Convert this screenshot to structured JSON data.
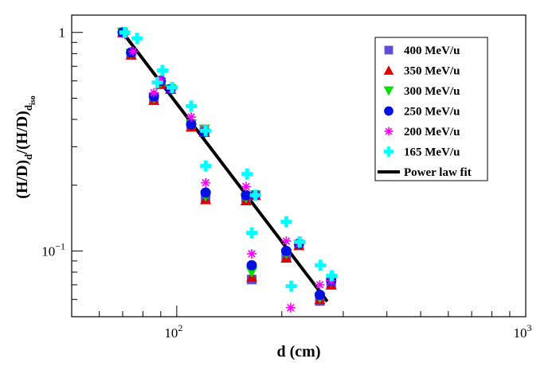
{
  "chart_data": {
    "type": "scatter",
    "title": "",
    "xlabel": "d (cm)",
    "ylabel": {
      "main": "(H/D)",
      "sub1": "d",
      "mid": "/(H/D)",
      "sub2": "d",
      "subsub": "iso"
    },
    "x_scale": "log",
    "y_scale": "log",
    "xlim": [
      50,
      1000
    ],
    "ylim": [
      0.05,
      1.2
    ],
    "x_ticks": [
      {
        "value": 100,
        "base": "10",
        "exp": "2"
      },
      {
        "value": 1000,
        "base": "10",
        "exp": "3"
      }
    ],
    "y_ticks": [
      {
        "value": 1,
        "label": "1",
        "base": "",
        "exp": ""
      },
      {
        "value": 0.1,
        "label": "",
        "base": "10",
        "exp": "−1"
      }
    ],
    "grid": false,
    "legend_position": "top-right",
    "series": [
      {
        "name": "400 MeV/u",
        "marker": "square",
        "color": "#5b4fd6",
        "points": [
          [
            70,
            1.0
          ],
          [
            74,
            0.8
          ],
          [
            86,
            0.5
          ],
          [
            90,
            0.58
          ],
          [
            96,
            0.55
          ],
          [
            110,
            0.38
          ],
          [
            120,
            0.35
          ],
          [
            121,
            0.175
          ],
          [
            158,
            0.175
          ],
          [
            168,
            0.18
          ],
          [
            164,
            0.074
          ],
          [
            206,
            0.095
          ],
          [
            224,
            0.107
          ],
          [
            257,
            0.059
          ],
          [
            277,
            0.071
          ]
        ]
      },
      {
        "name": "350 MeV/u",
        "marker": "triangle-up",
        "color": "#e00000",
        "points": [
          [
            70,
            1.0
          ],
          [
            74,
            0.79
          ],
          [
            86,
            0.49
          ],
          [
            90,
            0.58
          ],
          [
            96,
            0.55
          ],
          [
            110,
            0.37
          ],
          [
            120,
            0.35
          ],
          [
            121,
            0.172
          ],
          [
            158,
            0.17
          ],
          [
            168,
            0.18
          ],
          [
            164,
            0.076
          ],
          [
            206,
            0.093
          ],
          [
            224,
            0.106
          ],
          [
            257,
            0.06
          ],
          [
            277,
            0.07
          ]
        ]
      },
      {
        "name": "300 MeV/u",
        "marker": "triangle-down",
        "color": "#00e000",
        "points": [
          [
            70,
            1.0
          ],
          [
            74,
            0.8
          ],
          [
            86,
            0.5
          ],
          [
            90,
            0.59
          ],
          [
            96,
            0.55
          ],
          [
            110,
            0.38
          ],
          [
            120,
            0.36
          ],
          [
            121,
            0.178
          ],
          [
            158,
            0.175
          ],
          [
            168,
            0.18
          ],
          [
            164,
            0.08
          ],
          [
            206,
            0.097
          ],
          [
            224,
            0.107
          ],
          [
            257,
            0.061
          ],
          [
            277,
            0.072
          ]
        ]
      },
      {
        "name": "250 MeV/u",
        "marker": "circle",
        "color": "#0010e0",
        "points": [
          [
            70,
            1.0
          ],
          [
            74,
            0.81
          ],
          [
            86,
            0.51
          ],
          [
            90,
            0.6
          ],
          [
            96,
            0.55
          ],
          [
            110,
            0.38
          ],
          [
            120,
            0.35
          ],
          [
            121,
            0.185
          ],
          [
            158,
            0.18
          ],
          [
            168,
            0.18
          ],
          [
            164,
            0.086
          ],
          [
            206,
            0.1
          ],
          [
            224,
            0.108
          ],
          [
            257,
            0.063
          ],
          [
            277,
            0.073
          ]
        ]
      },
      {
        "name": "200 MeV/u",
        "marker": "star",
        "color": "#ff00ff",
        "points": [
          [
            71,
            0.98
          ],
          [
            75,
            0.82
          ],
          [
            86,
            0.53
          ],
          [
            90,
            0.61
          ],
          [
            97,
            0.55
          ],
          [
            110,
            0.41
          ],
          [
            120,
            0.36
          ],
          [
            121,
            0.205
          ],
          [
            158,
            0.197
          ],
          [
            168,
            0.18
          ],
          [
            164,
            0.097
          ],
          [
            206,
            0.111
          ],
          [
            212,
            0.055
          ],
          [
            224,
            0.108
          ],
          [
            257,
            0.07
          ],
          [
            277,
            0.073
          ]
        ]
      },
      {
        "name": "165 MeV/u",
        "marker": "cross",
        "color": "#00ffff",
        "points": [
          [
            71,
            1.0
          ],
          [
            77,
            0.94
          ],
          [
            88,
            0.59
          ],
          [
            91,
            0.67
          ],
          [
            97,
            0.56
          ],
          [
            110,
            0.46
          ],
          [
            121,
            0.355
          ],
          [
            121,
            0.245
          ],
          [
            159,
            0.225
          ],
          [
            168,
            0.18
          ],
          [
            164,
            0.121
          ],
          [
            206,
            0.136
          ],
          [
            213,
            0.069
          ],
          [
            225,
            0.11
          ],
          [
            258,
            0.086
          ],
          [
            278,
            0.077
          ]
        ]
      }
    ],
    "fit": {
      "name": "Power law fit",
      "color": "#000000",
      "x_range": [
        70,
        270
      ],
      "amplitude": 1.0,
      "reference_x": 70,
      "exponent": -2.1
    }
  }
}
